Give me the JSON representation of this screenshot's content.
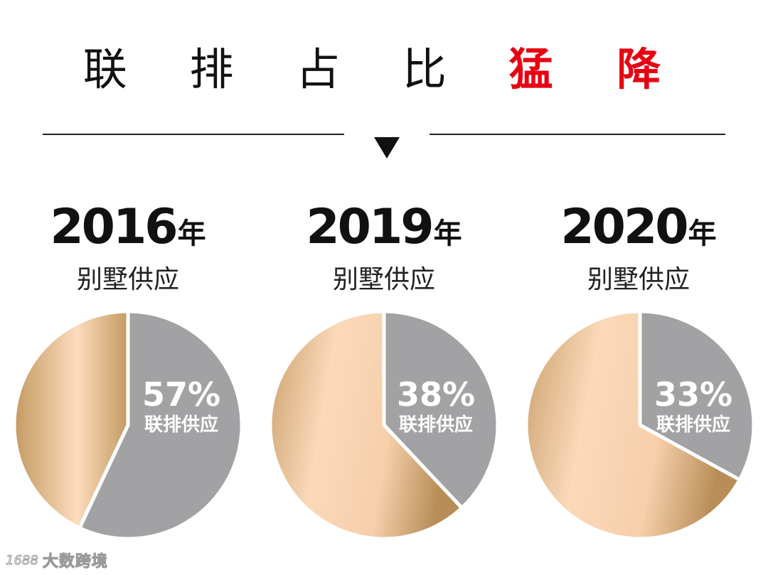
{
  "title": {
    "prefix": "联 排 占 比",
    "accent": "猛 降",
    "accent_color": "#e60012"
  },
  "divider": {
    "marker_icon": "down-triangle-icon"
  },
  "colors": {
    "townhouse_slice": "#a2a2a4",
    "other_slice_light": "#fcdcbe",
    "other_slice_dark": "#c49a62",
    "slice_border": "#ffffff"
  },
  "chart_data": [
    {
      "type": "pie",
      "year": "2016",
      "year_unit": "年",
      "subtitle": "别墅供应",
      "slices": [
        {
          "label": "联排供应",
          "value": 57,
          "value_label": "57%"
        },
        {
          "label": "",
          "value": 43,
          "value_label": ""
        }
      ]
    },
    {
      "type": "pie",
      "year": "2019",
      "year_unit": "年",
      "subtitle": "别墅供应",
      "slices": [
        {
          "label": "联排供应",
          "value": 38,
          "value_label": "38%"
        },
        {
          "label": "",
          "value": 62,
          "value_label": ""
        }
      ]
    },
    {
      "type": "pie",
      "year": "2020",
      "year_unit": "年",
      "subtitle": "别墅供应",
      "slices": [
        {
          "label": "联排供应",
          "value": 33,
          "value_label": "33%"
        },
        {
          "label": "",
          "value": 67,
          "value_label": ""
        }
      ]
    }
  ],
  "watermark": {
    "logo_text": "1688",
    "brand": "大数跨境"
  }
}
